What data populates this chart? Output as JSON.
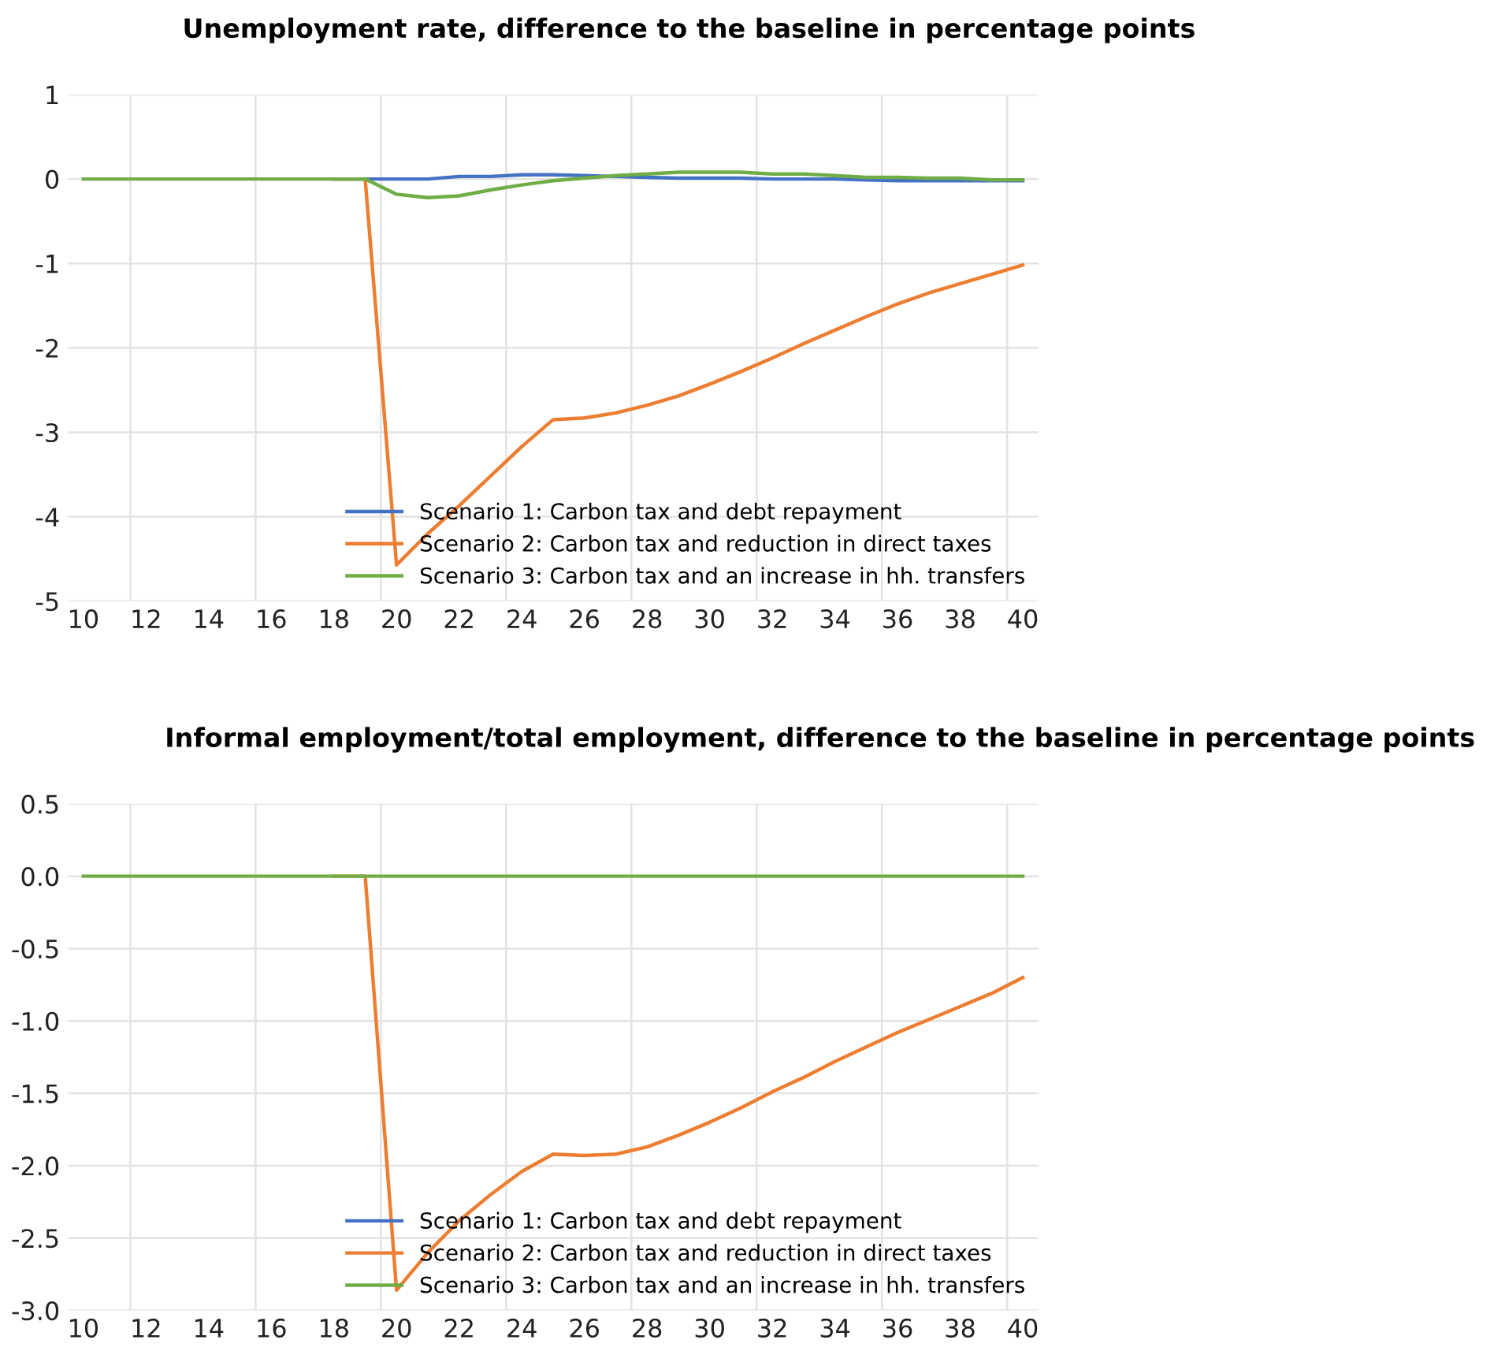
{
  "chart_data": [
    {
      "type": "line",
      "title": "Unemployment rate, difference to the baseline in percentage points",
      "x": [
        10,
        11,
        12,
        13,
        14,
        15,
        16,
        17,
        18,
        19,
        20,
        21,
        22,
        23,
        24,
        25,
        26,
        27,
        28,
        29,
        30,
        31,
        32,
        33,
        34,
        35,
        36,
        37,
        38,
        39,
        40
      ],
      "series": [
        {
          "name": "Scenario 1: Carbon tax and debt repayment",
          "color": "#4472c4",
          "values": [
            null,
            null,
            null,
            null,
            null,
            null,
            null,
            null,
            0,
            0,
            0,
            0,
            0.03,
            0.03,
            0.05,
            0.05,
            0.04,
            0.03,
            0.02,
            0.01,
            0.01,
            0.01,
            0,
            0,
            0,
            -0.01,
            -0.02,
            -0.02,
            -0.02,
            -0.02,
            -0.02
          ]
        },
        {
          "name": "Scenario 2: Carbon tax and reduction in direct taxes",
          "color": "#ed7d31",
          "values": [
            null,
            null,
            null,
            null,
            null,
            null,
            null,
            null,
            0,
            0,
            -4.57,
            -4.2,
            -3.87,
            -3.52,
            -3.17,
            -2.85,
            -2.83,
            -2.77,
            -2.68,
            -2.57,
            -2.43,
            -2.28,
            -2.12,
            -1.95,
            -1.79,
            -1.63,
            -1.48,
            -1.35,
            -1.24,
            -1.13,
            -1.02
          ]
        },
        {
          "name": "Scenario 3: Carbon tax and an increase in hh. transfers",
          "color": "#70ad47",
          "values": [
            0,
            0,
            0,
            0,
            0,
            0,
            0,
            0,
            0,
            0,
            -0.18,
            -0.22,
            -0.2,
            -0.13,
            -0.07,
            -0.02,
            0.01,
            0.04,
            0.06,
            0.08,
            0.08,
            0.08,
            0.06,
            0.06,
            0.04,
            0.02,
            0.02,
            0.01,
            0.01,
            -0.01,
            -0.01
          ]
        }
      ],
      "xlim": [
        9.5,
        40.5
      ],
      "xticks": [
        10,
        12,
        14,
        16,
        18,
        20,
        22,
        24,
        26,
        28,
        30,
        32,
        34,
        36,
        38,
        40,
        {
          "value": 11.5,
          "label": null
        },
        {
          "value": 15.5,
          "label": null
        },
        {
          "value": 19.5,
          "label": null
        },
        {
          "value": 23.5,
          "label": null
        },
        {
          "value": 27.5,
          "label": null
        },
        {
          "value": 31.5,
          "label": null
        },
        {
          "value": 35.5,
          "label": null
        },
        {
          "value": 39.5,
          "label": null
        }
      ],
      "ylim": [
        -5,
        1
      ],
      "yticks": [
        -5,
        -4,
        -3,
        -2,
        -1,
        0,
        1
      ],
      "grid": true,
      "legend": "bottom right",
      "marker": "none",
      "line_style": "solid"
    },
    {
      "type": "line",
      "title": "Informal employment/total employment, difference to the baseline in percentage points",
      "x": [
        10,
        11,
        12,
        13,
        14,
        15,
        16,
        17,
        18,
        19,
        20,
        21,
        22,
        23,
        24,
        25,
        26,
        27,
        28,
        29,
        30,
        31,
        32,
        33,
        34,
        35,
        36,
        37,
        38,
        39,
        40
      ],
      "series": [
        {
          "name": "Scenario 1: Carbon tax and debt repayment",
          "color": "#4472c4",
          "values": [
            null,
            null,
            null,
            null,
            null,
            null,
            null,
            null,
            null,
            null,
            null,
            null,
            null,
            null,
            null,
            null,
            null,
            null,
            null,
            null,
            null,
            null,
            null,
            null,
            null,
            null,
            null,
            null,
            null,
            null,
            null
          ]
        },
        {
          "name": "Scenario 2: Carbon tax and reduction in direct taxes",
          "color": "#ed7d31",
          "values": [
            null,
            null,
            null,
            null,
            null,
            null,
            null,
            null,
            0,
            0,
            -2.86,
            -2.6,
            -2.38,
            -2.2,
            -2.04,
            -1.92,
            -1.93,
            -1.92,
            -1.87,
            -1.79,
            -1.7,
            -1.6,
            -1.49,
            -1.39,
            -1.28,
            -1.18,
            -1.08,
            -0.99,
            -0.9,
            -0.81,
            -0.7
          ]
        },
        {
          "name": "Scenario 3: Carbon tax and an increase in hh. transfers",
          "color": "#70ad47",
          "values": [
            0,
            0,
            0,
            0,
            0,
            0,
            0,
            0,
            0,
            0,
            0,
            0,
            0,
            0,
            0,
            0,
            0,
            0,
            0,
            0,
            0,
            0,
            0,
            0,
            0,
            0,
            0,
            0,
            0,
            0,
            0
          ]
        }
      ],
      "xlim": [
        9.5,
        40.5
      ],
      "xticks": [
        10,
        12,
        14,
        16,
        18,
        20,
        22,
        24,
        26,
        28,
        30,
        32,
        34,
        36,
        38,
        40,
        {
          "value": 11.5,
          "label": null
        },
        {
          "value": 15.5,
          "label": null
        },
        {
          "value": 19.5,
          "label": null
        },
        {
          "value": 23.5,
          "label": null
        },
        {
          "value": 27.5,
          "label": null
        },
        {
          "value": 31.5,
          "label": null
        },
        {
          "value": 35.5,
          "label": null
        },
        {
          "value": 39.5,
          "label": null
        }
      ],
      "ylim": [
        -3,
        0.5
      ],
      "yticks": [
        {
          "value": -3,
          "label": "-3.0"
        },
        -2.5,
        {
          "value": -2,
          "label": "-2.0"
        },
        -1.5,
        {
          "value": -1,
          "label": "-1.0"
        },
        -0.5,
        {
          "value": 0,
          "label": "0.0"
        },
        0.5
      ],
      "grid": true,
      "legend": "bottom right",
      "marker": "none",
      "line_style": "solid"
    }
  ]
}
